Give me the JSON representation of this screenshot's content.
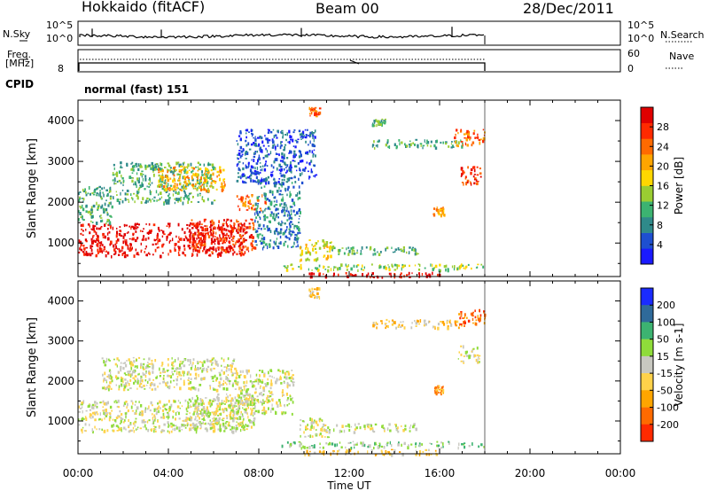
{
  "header": {
    "station": "Hokkaido (fitACF)",
    "beam": "Beam 00",
    "date": "28/Dec/2011"
  },
  "ancillary": {
    "nsky_label": "N.Sky",
    "nsky_ticks": [
      "10^5",
      "10^0"
    ],
    "nsearch_label": "N.Search",
    "freq_label_1": "Freq.",
    "freq_label_2": "[MHz]",
    "freq_tick": "8",
    "nave_label": "Nave",
    "nave_ticks": [
      "60",
      "0"
    ],
    "cpid_label": "CPID",
    "cpid_value": "normal (fast) 151"
  },
  "chart_data": [
    {
      "type": "heatmap",
      "name": "power-panel",
      "ylabel": "Slant Range [km]",
      "ylim": [
        180,
        4500
      ],
      "y_ticks": [
        1000,
        2000,
        3000,
        4000
      ],
      "xlabel": "Time UT",
      "x_ticks": [
        "00:00",
        "04:00",
        "08:00",
        "12:00",
        "16:00",
        "20:00",
        "00:00"
      ],
      "xlim_hours": [
        0,
        24
      ],
      "colorbar": {
        "label": "Power [dB]",
        "ticks": [
          "4",
          "8",
          "12",
          "16",
          "20",
          "24",
          "28"
        ],
        "colors": [
          "#1a1aff",
          "#1e4fd0",
          "#2f8a8a",
          "#3cb371",
          "#9acd32",
          "#ffd700",
          "#ffa500",
          "#ff6a00",
          "#ff2a00",
          "#e00000"
        ]
      },
      "regions": [
        {
          "t0": 0.0,
          "t1": 7.5,
          "r0": 700,
          "r1": 1500,
          "level": 9
        },
        {
          "t0": 4.8,
          "t1": 7.8,
          "r0": 800,
          "r1": 1600,
          "level": 8
        },
        {
          "t0": 0.0,
          "t1": 1.5,
          "r0": 1500,
          "r1": 2400,
          "level": 3
        },
        {
          "t0": 1.5,
          "t1": 6.0,
          "r0": 2000,
          "r1": 3000,
          "level": 3
        },
        {
          "t0": 3.5,
          "t1": 6.5,
          "r0": 2300,
          "r1": 2900,
          "level": 6
        },
        {
          "t0": 7.0,
          "t1": 8.3,
          "r0": 1800,
          "r1": 2200,
          "level": 7
        },
        {
          "t0": 7.8,
          "t1": 9.8,
          "r0": 900,
          "r1": 2600,
          "level": 2
        },
        {
          "t0": 7.0,
          "t1": 10.5,
          "r0": 2500,
          "r1": 3800,
          "level": 1
        },
        {
          "t0": 9.8,
          "t1": 11.2,
          "r0": 600,
          "r1": 1100,
          "level": 5
        },
        {
          "t0": 10.2,
          "t1": 10.7,
          "r0": 4100,
          "r1": 4350,
          "level": 7
        },
        {
          "t0": 11.2,
          "t1": 15.0,
          "r0": 750,
          "r1": 950,
          "level": 3
        },
        {
          "t0": 9.0,
          "t1": 18.0,
          "r0": 350,
          "r1": 500,
          "level": 4
        },
        {
          "t0": 10.0,
          "t1": 16.0,
          "r0": 180,
          "r1": 300,
          "level": 9
        },
        {
          "t0": 13.0,
          "t1": 17.0,
          "r0": 3350,
          "r1": 3550,
          "level": 3
        },
        {
          "t0": 16.6,
          "t1": 18.0,
          "r0": 3400,
          "r1": 3800,
          "level": 7
        },
        {
          "t0": 16.8,
          "t1": 17.8,
          "r0": 2450,
          "r1": 2900,
          "level": 8
        },
        {
          "t0": 15.7,
          "t1": 16.2,
          "r0": 1700,
          "r1": 1900,
          "level": 6
        },
        {
          "t0": 13.0,
          "t1": 13.6,
          "r0": 3900,
          "r1": 4050,
          "level": 3
        }
      ]
    },
    {
      "type": "heatmap",
      "name": "velocity-panel",
      "ylabel": "Slant Range [km]",
      "ylim": [
        180,
        4500
      ],
      "y_ticks": [
        1000,
        2000,
        3000,
        4000
      ],
      "xlabel": "Time UT",
      "x_ticks": [
        "00:00",
        "04:00",
        "08:00",
        "12:00",
        "16:00",
        "20:00",
        "00:00"
      ],
      "xlim_hours": [
        0,
        24
      ],
      "colorbar": {
        "label": "Velocity [m s-1]",
        "ticks": [
          "200",
          "100",
          "50",
          "15",
          "-15",
          "-50",
          "-100",
          "-200"
        ],
        "colors": [
          "#1a2bff",
          "#2f6a9a",
          "#3cb371",
          "#8fdc3a",
          "#c8c8c0",
          "#ffd24a",
          "#ffa500",
          "#ff6a00",
          "#ff2a00"
        ]
      },
      "regions": [
        {
          "t0": 0.0,
          "t1": 7.5,
          "r0": 750,
          "r1": 1550,
          "level": 4
        },
        {
          "t0": 4.8,
          "t1": 7.8,
          "r0": 800,
          "r1": 1700,
          "level": 4
        },
        {
          "t0": 1.0,
          "t1": 7.0,
          "r0": 1800,
          "r1": 2600,
          "level": 4
        },
        {
          "t0": 7.0,
          "t1": 9.5,
          "r0": 1200,
          "r1": 2300,
          "level": 4
        },
        {
          "t0": 9.8,
          "t1": 11.2,
          "r0": 600,
          "r1": 1100,
          "level": 4
        },
        {
          "t0": 11.2,
          "t1": 15.0,
          "r0": 750,
          "r1": 950,
          "level": 4
        },
        {
          "t0": 9.0,
          "t1": 18.0,
          "r0": 350,
          "r1": 500,
          "level": 3
        },
        {
          "t0": 10.0,
          "t1": 16.0,
          "r0": 180,
          "r1": 300,
          "level": 5
        },
        {
          "t0": 13.0,
          "t1": 17.0,
          "r0": 3350,
          "r1": 3550,
          "level": 5
        },
        {
          "t0": 16.6,
          "t1": 18.0,
          "r0": 3400,
          "r1": 3800,
          "level": 7
        },
        {
          "t0": 16.8,
          "t1": 17.8,
          "r0": 2450,
          "r1": 2900,
          "level": 4
        },
        {
          "t0": 15.7,
          "t1": 16.2,
          "r0": 1700,
          "r1": 1900,
          "level": 6
        },
        {
          "t0": 10.2,
          "t1": 10.7,
          "r0": 4100,
          "r1": 4350,
          "level": 5
        }
      ]
    }
  ]
}
